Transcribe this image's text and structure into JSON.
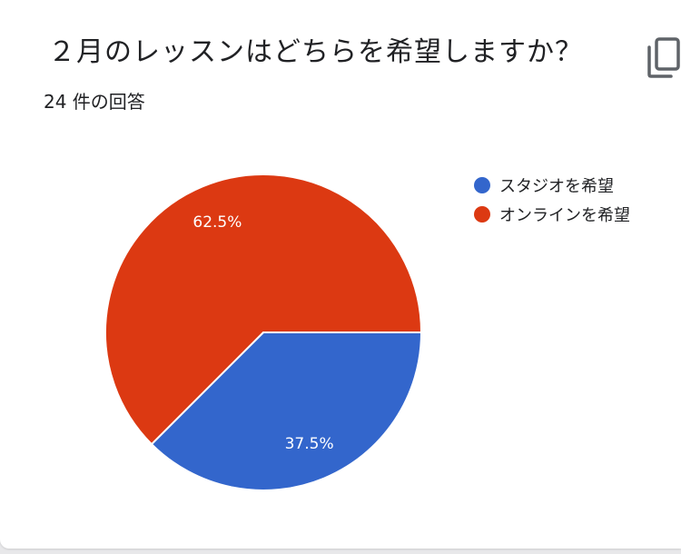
{
  "card": {
    "title": "２月のレッスンはどちらを希望しますか？",
    "response_count": "24 件の回答"
  },
  "icons": {
    "copy": "copy-icon"
  },
  "chart_data": {
    "type": "pie",
    "categories": [
      "スタジオを希望",
      "オンラインを希望"
    ],
    "values": [
      37.5,
      62.5
    ],
    "labels": [
      "37.5%",
      "62.5%"
    ],
    "colors": [
      "#3366cc",
      "#dc3912"
    ],
    "legend_position": "right"
  }
}
